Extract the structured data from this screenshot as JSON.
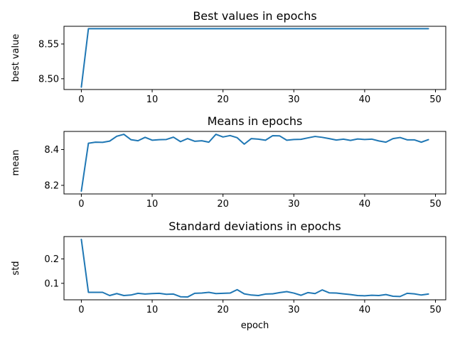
{
  "chart_data": [
    {
      "type": "line",
      "title": "Best values in epochs",
      "xlabel": "",
      "ylabel": "best value",
      "xlim": [
        -2.45,
        51.45
      ],
      "ylim": [
        8.4845,
        8.5755
      ],
      "xticks": [
        0,
        10,
        20,
        30,
        40,
        50
      ],
      "yticks": [
        8.5,
        8.55
      ],
      "ytick_labels": [
        "8.50",
        "8.55"
      ],
      "grid": false,
      "color": "#1f77b4",
      "x": [
        0,
        1,
        2,
        3,
        4,
        5,
        6,
        7,
        8,
        9,
        10,
        11,
        12,
        13,
        14,
        15,
        16,
        17,
        18,
        19,
        20,
        21,
        22,
        23,
        24,
        25,
        26,
        27,
        28,
        29,
        30,
        31,
        32,
        33,
        34,
        35,
        36,
        37,
        38,
        39,
        40,
        41,
        42,
        43,
        44,
        45,
        46,
        47,
        48,
        49
      ],
      "y": [
        8.488,
        8.572,
        8.572,
        8.572,
        8.572,
        8.572,
        8.572,
        8.572,
        8.572,
        8.572,
        8.572,
        8.572,
        8.572,
        8.572,
        8.572,
        8.572,
        8.572,
        8.572,
        8.572,
        8.572,
        8.572,
        8.572,
        8.572,
        8.572,
        8.572,
        8.572,
        8.572,
        8.572,
        8.572,
        8.572,
        8.572,
        8.572,
        8.572,
        8.572,
        8.572,
        8.572,
        8.572,
        8.572,
        8.572,
        8.572,
        8.572,
        8.572,
        8.572,
        8.572,
        8.572,
        8.572,
        8.572,
        8.572,
        8.572,
        8.572
      ]
    },
    {
      "type": "line",
      "title": "Means in epochs",
      "xlabel": "",
      "ylabel": "mean",
      "xlim": [
        -2.45,
        51.45
      ],
      "ylim": [
        8.152,
        8.501
      ],
      "xticks": [
        0,
        10,
        20,
        30,
        40,
        50
      ],
      "yticks": [
        8.2,
        8.4
      ],
      "ytick_labels": [
        "8.2",
        "8.4"
      ],
      "grid": false,
      "color": "#1f77b4",
      "x": [
        0,
        1,
        2,
        3,
        4,
        5,
        6,
        7,
        8,
        9,
        10,
        11,
        12,
        13,
        14,
        15,
        16,
        17,
        18,
        19,
        20,
        21,
        22,
        23,
        24,
        25,
        26,
        27,
        28,
        29,
        30,
        31,
        32,
        33,
        34,
        35,
        36,
        37,
        38,
        39,
        40,
        41,
        42,
        43,
        44,
        45,
        46,
        47,
        48,
        49
      ],
      "y": [
        8.168,
        8.435,
        8.441,
        8.44,
        8.447,
        8.474,
        8.485,
        8.455,
        8.449,
        8.468,
        8.452,
        8.455,
        8.456,
        8.469,
        8.444,
        8.461,
        8.446,
        8.449,
        8.441,
        8.485,
        8.47,
        8.478,
        8.466,
        8.43,
        8.461,
        8.458,
        8.452,
        8.477,
        8.476,
        8.452,
        8.456,
        8.457,
        8.465,
        8.473,
        8.468,
        8.461,
        8.453,
        8.458,
        8.451,
        8.459,
        8.456,
        8.458,
        8.448,
        8.441,
        8.461,
        8.467,
        8.454,
        8.454,
        8.441,
        8.455
      ]
    },
    {
      "type": "line",
      "title": "Standard deviations in epochs",
      "xlabel": "epoch",
      "ylabel": "std",
      "xlim": [
        -2.45,
        51.45
      ],
      "ylim": [
        0.0325,
        0.2915
      ],
      "xticks": [
        0,
        10,
        20,
        30,
        40,
        50
      ],
      "yticks": [
        0.1,
        0.2
      ],
      "ytick_labels": [
        "0.1",
        "0.2"
      ],
      "grid": false,
      "color": "#1f77b4",
      "x": [
        0,
        1,
        2,
        3,
        4,
        5,
        6,
        7,
        8,
        9,
        10,
        11,
        12,
        13,
        14,
        15,
        16,
        17,
        18,
        19,
        20,
        21,
        22,
        23,
        24,
        25,
        26,
        27,
        28,
        29,
        30,
        31,
        32,
        33,
        34,
        35,
        36,
        37,
        38,
        39,
        40,
        41,
        42,
        43,
        44,
        45,
        46,
        47,
        48,
        49
      ],
      "y": [
        0.28,
        0.063,
        0.063,
        0.063,
        0.05,
        0.058,
        0.05,
        0.052,
        0.059,
        0.056,
        0.058,
        0.059,
        0.055,
        0.056,
        0.045,
        0.044,
        0.059,
        0.06,
        0.063,
        0.058,
        0.059,
        0.06,
        0.074,
        0.057,
        0.052,
        0.05,
        0.056,
        0.057,
        0.062,
        0.066,
        0.06,
        0.051,
        0.062,
        0.058,
        0.073,
        0.061,
        0.06,
        0.057,
        0.054,
        0.05,
        0.049,
        0.051,
        0.05,
        0.054,
        0.047,
        0.046,
        0.059,
        0.057,
        0.052,
        0.056
      ]
    }
  ]
}
